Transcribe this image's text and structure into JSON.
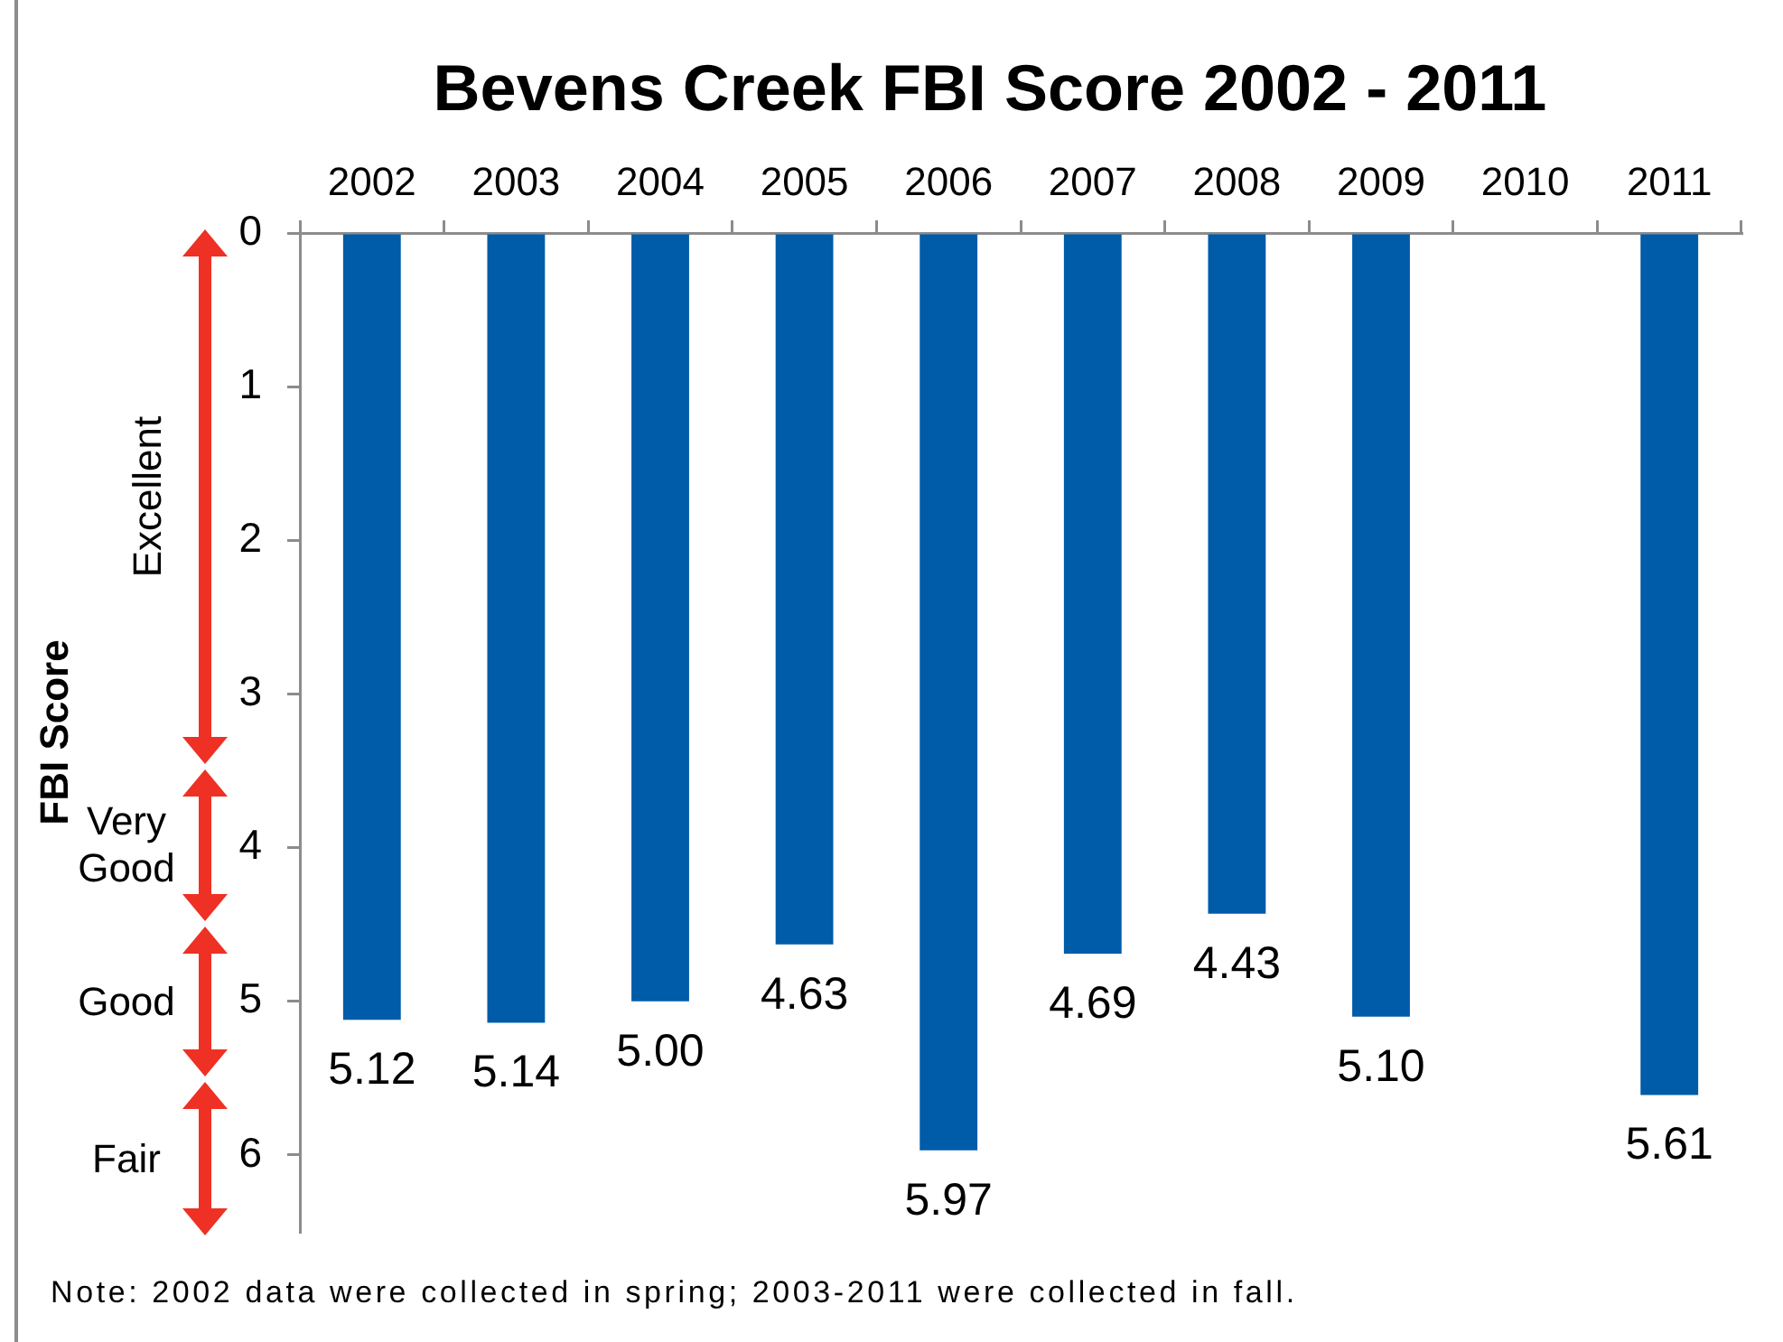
{
  "chart_data": {
    "type": "bar",
    "title": "Bevens Creek FBI Score 2002 - 2011",
    "ylabel": "FBI Score",
    "categories": [
      "2002",
      "2003",
      "2004",
      "2005",
      "2006",
      "2007",
      "2008",
      "2009",
      "2010",
      "2011"
    ],
    "values": [
      5.12,
      5.14,
      5.0,
      4.63,
      5.97,
      4.69,
      4.43,
      5.1,
      null,
      5.61
    ],
    "value_labels": [
      "5.12",
      "5.14",
      "5.00",
      "4.63",
      "5.97",
      "4.69",
      "4.43",
      "5.10",
      null,
      "5.61"
    ],
    "color": "#005ba9",
    "ylim": [
      6.5,
      0
    ],
    "yticks": [
      0,
      1,
      2,
      3,
      4,
      5,
      6
    ],
    "grid": false,
    "legend": false,
    "annotations": [
      "Excellent",
      "Very Good",
      "Good",
      "Fair",
      "Note: 2002 data were collected in spring; 2003-2011 were collected in fall."
    ]
  }
}
